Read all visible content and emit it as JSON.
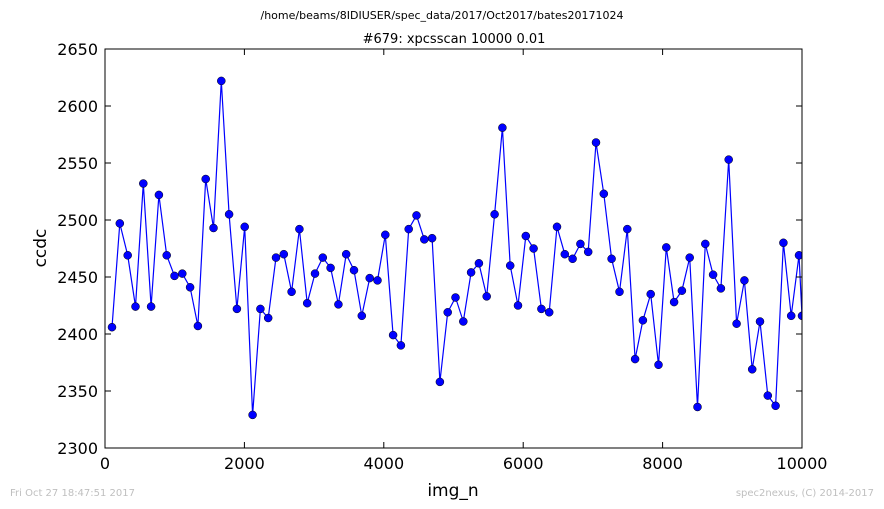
{
  "header": {
    "suptitle": "/home/beams/8IDIUSER/spec_data/2017/Oct2017/bates20171024",
    "footer_left": "Fri Oct 27 18:47:51 2017",
    "footer_right": "spec2nexus, (C) 2014-2017"
  },
  "chart_data": {
    "type": "line",
    "title": "#679: xpcsscan 10000 0.01",
    "xlabel": "img_n",
    "ylabel": "ccdc",
    "xlim": [
      0,
      10000
    ],
    "ylim": [
      2300,
      2650
    ],
    "xticks": [
      "0",
      "2000",
      "4000",
      "6000",
      "8000",
      "10000"
    ],
    "yticks": [
      "2300",
      "2350",
      "2400",
      "2450",
      "2500",
      "2550",
      "2600",
      "2650"
    ],
    "grid": false,
    "marker": "circle",
    "color": "#0000ff",
    "x": [
      101,
      213,
      325,
      437,
      549,
      661,
      773,
      885,
      997,
      1109,
      1221,
      1333,
      1445,
      1557,
      1669,
      1781,
      1893,
      2005,
      2117,
      2229,
      2341,
      2453,
      2565,
      2677,
      2789,
      2901,
      3013,
      3125,
      3237,
      3349,
      3461,
      3573,
      3685,
      3797,
      3909,
      4021,
      4133,
      4245,
      4357,
      4469,
      4581,
      4693,
      4805,
      4917,
      5029,
      5141,
      5253,
      5365,
      5477,
      5589,
      5701,
      5813,
      5925,
      6037,
      6149,
      6261,
      6373,
      6485,
      6597,
      6709,
      6821,
      6933,
      7045,
      7157,
      7269,
      7381,
      7493,
      7605,
      7717,
      7829,
      7941,
      8053,
      8165,
      8277,
      8389,
      8501,
      8613,
      8725,
      8837,
      8949,
      9061,
      9173,
      9285,
      9397,
      9509,
      9621,
      9733,
      9845,
      9957,
      10000
    ],
    "y": [
      2406,
      2497,
      2469,
      2424,
      2532,
      2424,
      2522,
      2469,
      2451,
      2453,
      2441,
      2407,
      2536,
      2493,
      2622,
      2505,
      2422,
      2494,
      2329,
      2422,
      2414,
      2467,
      2470,
      2437,
      2492,
      2427,
      2453,
      2467,
      2458,
      2426,
      2470,
      2456,
      2416,
      2449,
      2447,
      2487,
      2399,
      2390,
      2492,
      2504,
      2483,
      2484,
      2358,
      2419,
      2432,
      2411,
      2454,
      2462,
      2433,
      2505,
      2581,
      2460,
      2425,
      2486,
      2475,
      2422,
      2419,
      2494,
      2470,
      2466,
      2479,
      2472,
      2568,
      2523,
      2466,
      2437,
      2492,
      2378,
      2412,
      2435,
      2373,
      2476,
      2428,
      2438,
      2467,
      2336,
      2479,
      2452,
      2440,
      2553,
      2409,
      2447,
      2369,
      2411,
      2346,
      2337,
      2480,
      2416,
      2469,
      2416
    ]
  }
}
